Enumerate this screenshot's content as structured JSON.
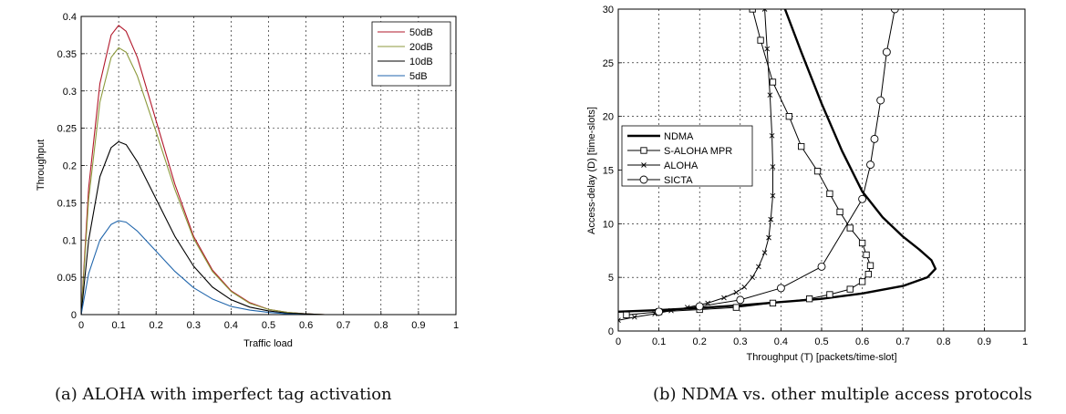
{
  "chart_data": [
    {
      "type": "line",
      "caption": "(a)  ALOHA with imperfect tag activation",
      "xlabel": "Traffic load",
      "ylabel": "Throughput",
      "xlim": [
        0,
        1
      ],
      "ylim": [
        0,
        0.4
      ],
      "xticks": [
        "0",
        "0.1",
        "0.2",
        "0.3",
        "0.4",
        "0.5",
        "0.6",
        "0.7",
        "0.8",
        "0.9",
        "1"
      ],
      "yticks": [
        "0",
        "0.05",
        "0.1",
        "0.15",
        "0.2",
        "0.25",
        "0.3",
        "0.35",
        "0.4"
      ],
      "grid": true,
      "legend_position": "top-right",
      "series": [
        {
          "name": "50dB",
          "color": "#b2182b",
          "peak": 0.388,
          "points": [
            [
              0,
              0
            ],
            [
              0.02,
              0.17
            ],
            [
              0.05,
              0.31
            ],
            [
              0.08,
              0.375
            ],
            [
              0.1,
              0.388
            ],
            [
              0.12,
              0.38
            ],
            [
              0.15,
              0.345
            ],
            [
              0.2,
              0.26
            ],
            [
              0.25,
              0.175
            ],
            [
              0.3,
              0.105
            ],
            [
              0.35,
              0.06
            ],
            [
              0.4,
              0.032
            ],
            [
              0.45,
              0.016
            ],
            [
              0.5,
              0.007
            ],
            [
              0.55,
              0.003
            ],
            [
              0.6,
              0.001
            ],
            [
              0.65,
              0
            ],
            [
              1,
              0
            ]
          ]
        },
        {
          "name": "20dB",
          "color": "#8c9a3c",
          "peak": 0.358,
          "points": [
            [
              0,
              0
            ],
            [
              0.02,
              0.155
            ],
            [
              0.05,
              0.285
            ],
            [
              0.08,
              0.345
            ],
            [
              0.1,
              0.358
            ],
            [
              0.12,
              0.352
            ],
            [
              0.15,
              0.32
            ],
            [
              0.2,
              0.245
            ],
            [
              0.25,
              0.168
            ],
            [
              0.3,
              0.102
            ],
            [
              0.35,
              0.058
            ],
            [
              0.4,
              0.031
            ],
            [
              0.45,
              0.015
            ],
            [
              0.5,
              0.007
            ],
            [
              0.55,
              0.003
            ],
            [
              0.6,
              0.001
            ],
            [
              0.65,
              0
            ],
            [
              1,
              0
            ]
          ]
        },
        {
          "name": "10dB",
          "color": "#000000",
          "peak": 0.232,
          "points": [
            [
              0,
              0
            ],
            [
              0.02,
              0.1
            ],
            [
              0.05,
              0.185
            ],
            [
              0.08,
              0.224
            ],
            [
              0.1,
              0.232
            ],
            [
              0.12,
              0.228
            ],
            [
              0.15,
              0.205
            ],
            [
              0.2,
              0.155
            ],
            [
              0.25,
              0.105
            ],
            [
              0.3,
              0.065
            ],
            [
              0.35,
              0.037
            ],
            [
              0.4,
              0.02
            ],
            [
              0.45,
              0.01
            ],
            [
              0.5,
              0.005
            ],
            [
              0.55,
              0.002
            ],
            [
              0.6,
              0.001
            ],
            [
              0.65,
              0
            ],
            [
              1,
              0
            ]
          ]
        },
        {
          "name": "5dB",
          "color": "#2166ac",
          "peak": 0.126,
          "points": [
            [
              0,
              0
            ],
            [
              0.02,
              0.055
            ],
            [
              0.05,
              0.1
            ],
            [
              0.08,
              0.121
            ],
            [
              0.1,
              0.126
            ],
            [
              0.12,
              0.124
            ],
            [
              0.15,
              0.112
            ],
            [
              0.2,
              0.085
            ],
            [
              0.25,
              0.058
            ],
            [
              0.3,
              0.036
            ],
            [
              0.35,
              0.021
            ],
            [
              0.4,
              0.011
            ],
            [
              0.45,
              0.006
            ],
            [
              0.5,
              0.003
            ],
            [
              0.55,
              0.001
            ],
            [
              0.6,
              0
            ],
            [
              1,
              0
            ]
          ]
        }
      ]
    },
    {
      "type": "line",
      "caption": "(b)  NDMA vs. other multiple access protocols",
      "xlabel": "Throughput (T) [packets/time-slot]",
      "ylabel": "Access-delay (D) [time-slots]",
      "xlim": [
        0,
        1
      ],
      "ylim": [
        0,
        30
      ],
      "xticks": [
        "0",
        "0.1",
        "0.2",
        "0.3",
        "0.4",
        "0.5",
        "0.6",
        "0.7",
        "0.8",
        "0.9",
        "1"
      ],
      "yticks": [
        "0",
        "5",
        "10",
        "15",
        "20",
        "25",
        "30"
      ],
      "grid": true,
      "legend_position": "middle-left",
      "series": [
        {
          "name": "NDMA",
          "color": "#000000",
          "marker": "none",
          "width": 2.4,
          "points": [
            [
              0,
              1.8
            ],
            [
              0.1,
              1.95
            ],
            [
              0.2,
              2.15
            ],
            [
              0.3,
              2.4
            ],
            [
              0.4,
              2.7
            ],
            [
              0.5,
              3.0
            ],
            [
              0.6,
              3.5
            ],
            [
              0.7,
              4.2
            ],
            [
              0.76,
              5.0
            ],
            [
              0.78,
              5.8
            ],
            [
              0.77,
              6.6
            ],
            [
              0.74,
              7.6
            ],
            [
              0.7,
              8.8
            ],
            [
              0.65,
              10.6
            ],
            [
              0.6,
              13.0
            ],
            [
              0.55,
              16.8
            ],
            [
              0.5,
              21.2
            ],
            [
              0.45,
              26.0
            ],
            [
              0.41,
              30
            ]
          ]
        },
        {
          "name": "S-ALOHA MPR",
          "color": "#000000",
          "marker": "square",
          "width": 1,
          "points": [
            [
              0.02,
              1.5
            ],
            [
              0.1,
              1.8
            ],
            [
              0.2,
              2.0
            ],
            [
              0.29,
              2.2
            ],
            [
              0.38,
              2.6
            ],
            [
              0.47,
              3.0
            ],
            [
              0.52,
              3.4
            ],
            [
              0.57,
              3.9
            ],
            [
              0.6,
              4.6
            ],
            [
              0.615,
              5.3
            ],
            [
              0.62,
              6.1
            ],
            [
              0.61,
              7.1
            ],
            [
              0.6,
              8.2
            ],
            [
              0.57,
              9.6
            ],
            [
              0.545,
              11.1
            ],
            [
              0.52,
              12.8
            ],
            [
              0.49,
              14.9
            ],
            [
              0.45,
              17.2
            ],
            [
              0.42,
              20.0
            ],
            [
              0.38,
              23.2
            ],
            [
              0.35,
              27.1
            ],
            [
              0.33,
              30
            ]
          ]
        },
        {
          "name": "ALOHA",
          "color": "#000000",
          "marker": "x",
          "width": 1,
          "points": [
            [
              0,
              1.0
            ],
            [
              0.04,
              1.3
            ],
            [
              0.09,
              1.6
            ],
            [
              0.13,
              1.9
            ],
            [
              0.17,
              2.2
            ],
            [
              0.22,
              2.6
            ],
            [
              0.26,
              3.1
            ],
            [
              0.29,
              3.6
            ],
            [
              0.31,
              4.1
            ],
            [
              0.33,
              5.0
            ],
            [
              0.345,
              6.0
            ],
            [
              0.36,
              7.3
            ],
            [
              0.37,
              8.7
            ],
            [
              0.375,
              10.4
            ],
            [
              0.38,
              12.6
            ],
            [
              0.38,
              15.3
            ],
            [
              0.378,
              18.2
            ],
            [
              0.373,
              22.0
            ],
            [
              0.366,
              26.3
            ],
            [
              0.36,
              30
            ]
          ]
        },
        {
          "name": "SICTA",
          "color": "#000000",
          "marker": "circle",
          "width": 1,
          "points": [
            [
              0.1,
              1.8
            ],
            [
              0.2,
              2.3
            ],
            [
              0.3,
              2.9
            ],
            [
              0.4,
              4.0
            ],
            [
              0.5,
              6.0
            ],
            [
              0.6,
              12.3
            ],
            [
              0.62,
              15.5
            ],
            [
              0.63,
              17.9
            ],
            [
              0.645,
              21.5
            ],
            [
              0.66,
              26.0
            ],
            [
              0.68,
              30
            ]
          ]
        }
      ]
    }
  ]
}
